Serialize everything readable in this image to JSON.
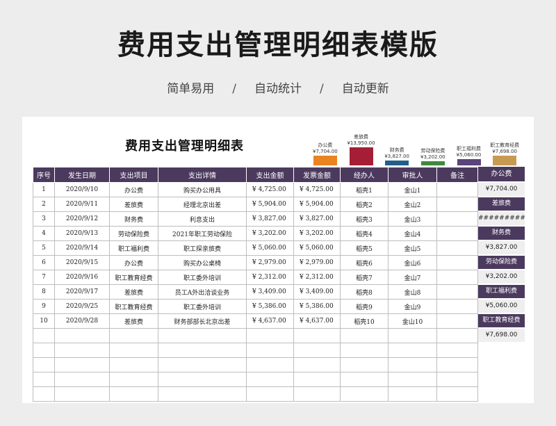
{
  "banner": {
    "title": "费用支出管理明细表模版",
    "tags": [
      "简单易用",
      "自动统计",
      "自动更新"
    ],
    "separator": "/"
  },
  "sheet": {
    "title": "费用支出管理明细表",
    "columns": [
      "序号",
      "发生日期",
      "支出项目",
      "支出详情",
      "支出金额",
      "发票金额",
      "经办人",
      "审批人",
      "备注"
    ],
    "rows": [
      {
        "no": "1",
        "date": "2020/9/10",
        "item": "办公费",
        "detail": "购买办公用具",
        "amount": "¥ 4,725.00",
        "invoice": "¥ 4,725.00",
        "handler": "稻壳1",
        "approver": "金山1",
        "note": ""
      },
      {
        "no": "2",
        "date": "2020/9/11",
        "item": "差旅费",
        "detail": "经理北京出差",
        "amount": "¥ 5,904.00",
        "invoice": "¥ 5,904.00",
        "handler": "稻壳2",
        "approver": "金山2",
        "note": ""
      },
      {
        "no": "3",
        "date": "2020/9/12",
        "item": "财务费",
        "detail": "利息支出",
        "amount": "¥ 3,827.00",
        "invoice": "¥ 3,827.00",
        "handler": "稻壳3",
        "approver": "金山3",
        "note": ""
      },
      {
        "no": "4",
        "date": "2020/9/13",
        "item": "劳动保险费",
        "detail": "2021年职工劳动保险",
        "amount": "¥ 3,202.00",
        "invoice": "¥ 3,202.00",
        "handler": "稻壳4",
        "approver": "金山4",
        "note": ""
      },
      {
        "no": "5",
        "date": "2020/9/14",
        "item": "职工福利费",
        "detail": "职工探亲旅费",
        "amount": "¥ 5,060.00",
        "invoice": "¥ 5,060.00",
        "handler": "稻壳5",
        "approver": "金山5",
        "note": ""
      },
      {
        "no": "6",
        "date": "2020/9/15",
        "item": "办公费",
        "detail": "购买办公桌椅",
        "amount": "¥ 2,979.00",
        "invoice": "¥ 2,979.00",
        "handler": "稻壳6",
        "approver": "金山6",
        "note": ""
      },
      {
        "no": "7",
        "date": "2020/9/16",
        "item": "职工教育经费",
        "detail": "职工委外培训",
        "amount": "¥ 2,312.00",
        "invoice": "¥ 2,312.00",
        "handler": "稻壳7",
        "approver": "金山7",
        "note": ""
      },
      {
        "no": "8",
        "date": "2020/9/17",
        "item": "差旅费",
        "detail": "员工A外出洽谈业务",
        "amount": "¥ 3,409.00",
        "invoice": "¥ 3,409.00",
        "handler": "稻壳8",
        "approver": "金山8",
        "note": ""
      },
      {
        "no": "9",
        "date": "2020/9/25",
        "item": "职工教育经费",
        "detail": "职工委外培训",
        "amount": "¥ 5,386.00",
        "invoice": "¥ 5,386.00",
        "handler": "稻壳9",
        "approver": "金山9",
        "note": ""
      },
      {
        "no": "10",
        "date": "2020/9/28",
        "item": "差旅费",
        "detail": "财务部部长北京出差",
        "amount": "¥ 4,637.00",
        "invoice": "¥ 4,637.00",
        "handler": "稻壳10",
        "approver": "金山10",
        "note": ""
      }
    ],
    "empty_rows": 5
  },
  "summary": {
    "header": "办公费",
    "cells": [
      {
        "text": "¥7,704.00",
        "style": "light"
      },
      {
        "text": "差旅费",
        "style": "dark"
      },
      {
        "text": "############",
        "style": "light"
      },
      {
        "text": "财务费",
        "style": "dark"
      },
      {
        "text": "¥3,827.00",
        "style": "light"
      },
      {
        "text": "劳动保险费",
        "style": "dark"
      },
      {
        "text": "¥3,202.00",
        "style": "light"
      },
      {
        "text": "职工福利费",
        "style": "dark"
      },
      {
        "text": "¥5,060.00",
        "style": "light"
      },
      {
        "text": "职工教育经费",
        "style": "dark"
      },
      {
        "text": "¥7,698.00",
        "style": "light"
      }
    ]
  },
  "chart_data": {
    "type": "bar",
    "categories": [
      "办公费",
      "差旅费",
      "财务费",
      "劳动保险费",
      "职工福利费",
      "职工教育经费"
    ],
    "values": [
      7704,
      13950,
      3827,
      3202,
      5060,
      7698
    ],
    "data_labels": [
      "¥7,704.00",
      "¥13,950.00",
      "¥3,827.00",
      "¥3,202.00",
      "¥5,060.00",
      "¥7,698.00"
    ],
    "colors": [
      "#e98420",
      "#a51e35",
      "#215f8a",
      "#3f8a3c",
      "#5b437b",
      "#c79a52"
    ],
    "title": "",
    "xlabel": "",
    "ylabel": ""
  }
}
